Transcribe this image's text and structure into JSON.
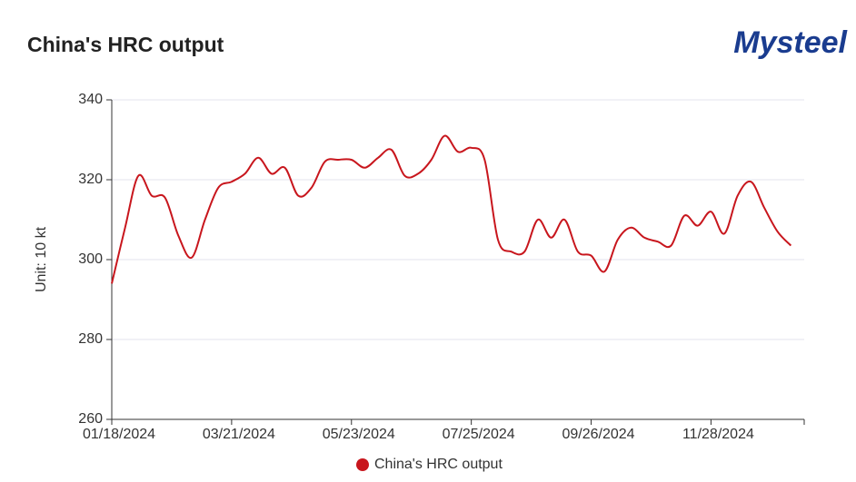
{
  "chart_data": {
    "type": "line",
    "title": "China's HRC output",
    "logo": "Mysteel",
    "y_label": "Unit: 10 kt",
    "categories": [
      "01/18/2024",
      null,
      null,
      null,
      null,
      null,
      null,
      null,
      null,
      "03/21/2024",
      null,
      null,
      null,
      null,
      null,
      null,
      null,
      null,
      "05/23/2024",
      null,
      null,
      null,
      null,
      null,
      null,
      null,
      null,
      "07/25/2024",
      null,
      null,
      null,
      null,
      null,
      null,
      null,
      null,
      "09/26/2024",
      null,
      null,
      null,
      null,
      null,
      null,
      null,
      null,
      "11/28/2024",
      null,
      null,
      null,
      null,
      null,
      null
    ],
    "series": [
      {
        "name": "China's HRC output",
        "color": "#c8161d",
        "values": [
          294,
          308,
          321,
          316,
          315.5,
          306,
          300.5,
          310,
          318,
          319.5,
          321.5,
          325.5,
          321.5,
          323,
          316,
          318,
          324.5,
          325,
          325,
          323,
          325.5,
          327.5,
          321,
          321.5,
          325,
          331,
          327,
          328,
          325,
          305,
          302,
          302,
          310,
          305.5,
          310,
          302,
          301,
          297,
          305,
          308,
          305.5,
          304.5,
          303.5,
          311,
          308.5,
          312,
          306.5,
          316,
          319.5,
          313,
          307,
          303.5
        ]
      }
    ],
    "ylim": [
      260,
      340
    ],
    "yticks": [
      260,
      280,
      300,
      320,
      340
    ],
    "grid": true,
    "legend": "bottom"
  }
}
